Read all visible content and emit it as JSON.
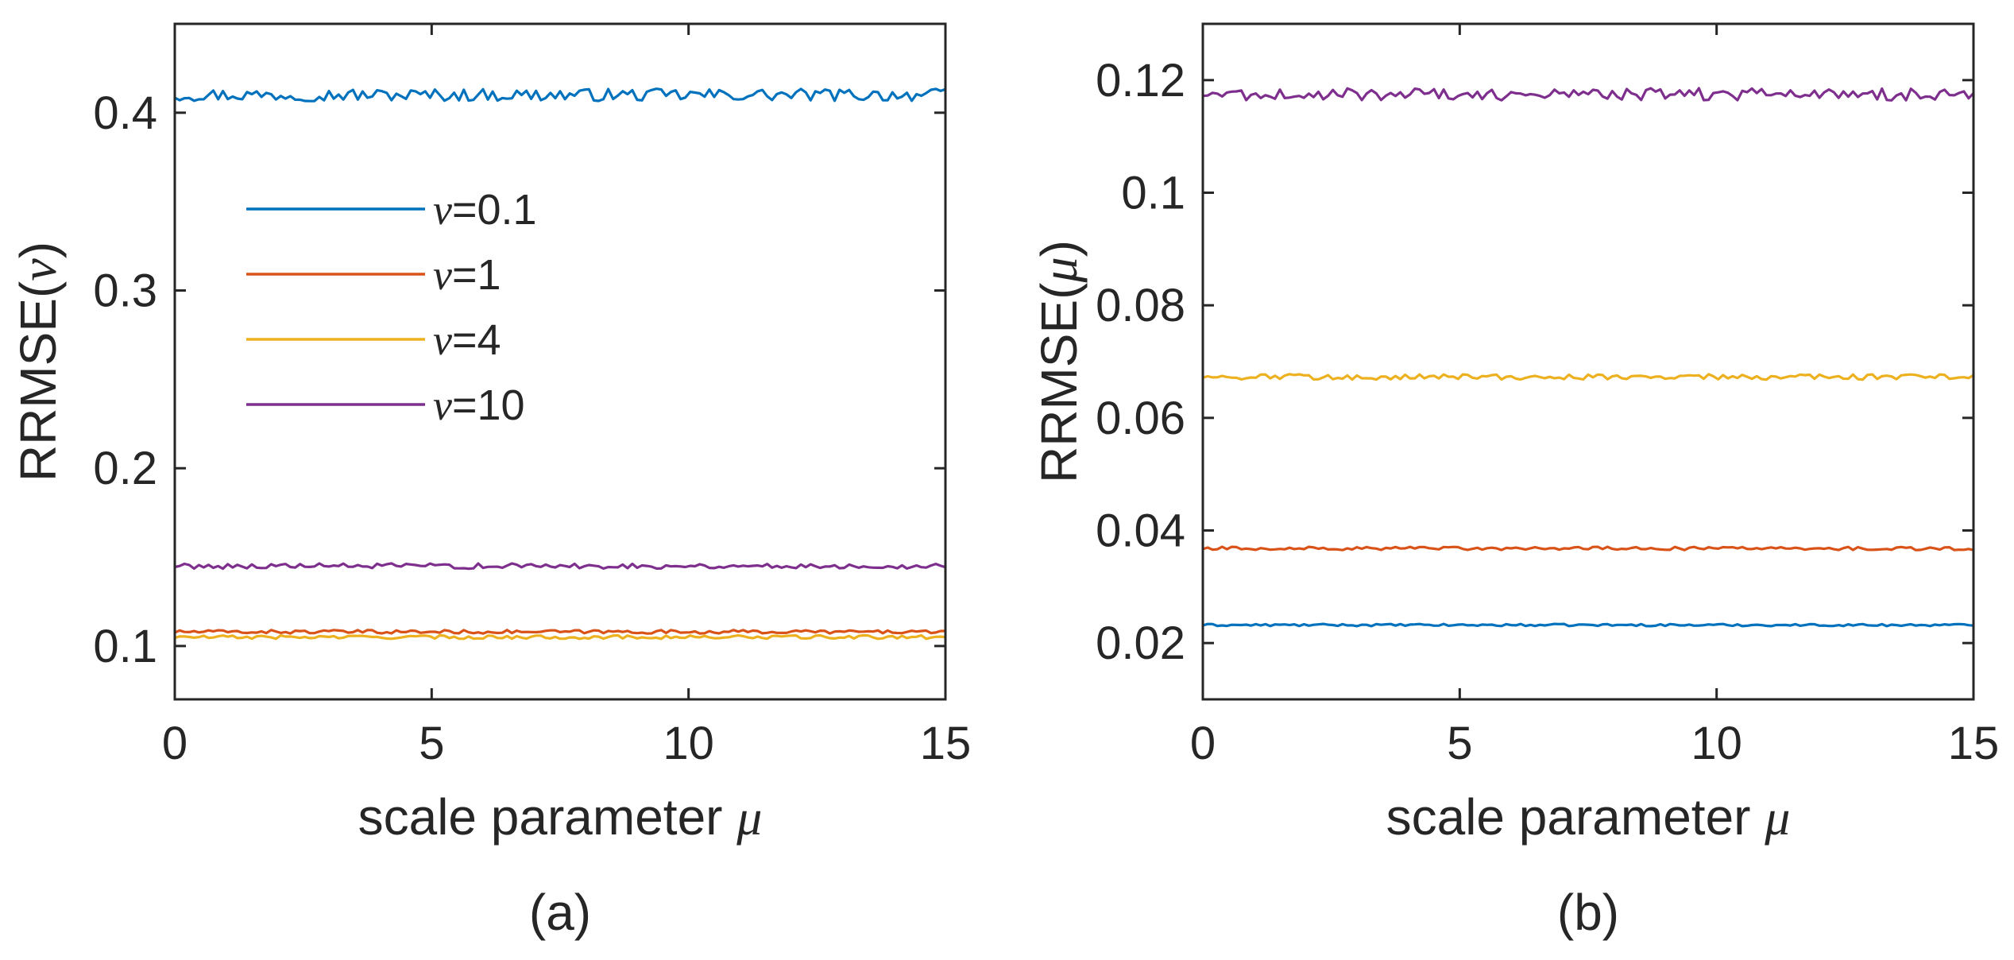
{
  "chart_data": [
    {
      "type": "line",
      "panel_label": "(a)",
      "xlabel": "scale parameter",
      "xlabel_symbol": "μ",
      "ylabel": "RRMSE(",
      "ylabel_symbol": "ν",
      "ylabel_close": ")",
      "xlim": [
        0,
        15
      ],
      "ylim": [
        0.07,
        0.45
      ],
      "xticks": [
        0,
        5,
        10,
        15
      ],
      "xtick_labels": [
        "0",
        "5",
        "10",
        "15"
      ],
      "yticks": [
        0.1,
        0.2,
        0.3,
        0.4
      ],
      "ytick_labels": [
        "0.1",
        "0.2",
        "0.3",
        "0.4"
      ],
      "grid": false,
      "legend_position": "upper-left",
      "legend": [
        {
          "symbol": "ν",
          "text": "=0.1"
        },
        {
          "symbol": "ν",
          "text": "=1"
        },
        {
          "symbol": "ν",
          "text": "=4"
        },
        {
          "symbol": "ν",
          "text": "=10"
        }
      ],
      "series": [
        {
          "name": "ν=0.1",
          "color": "#0072BD",
          "mean": 0.41,
          "noise": 0.0035
        },
        {
          "name": "ν=1",
          "color": "#D95319",
          "mean": 0.108,
          "noise": 0.001
        },
        {
          "name": "ν=4",
          "color": "#EDB120",
          "mean": 0.105,
          "noise": 0.001
        },
        {
          "name": "ν=10",
          "color": "#7E2F8E",
          "mean": 0.145,
          "noise": 0.0015
        }
      ]
    },
    {
      "type": "line",
      "panel_label": "(b)",
      "xlabel": "scale parameter",
      "xlabel_symbol": "μ",
      "ylabel": "RRMSE(",
      "ylabel_symbol": "μ",
      "ylabel_close": ")",
      "xlim": [
        0,
        15
      ],
      "ylim": [
        0.01,
        0.13
      ],
      "xticks": [
        0,
        5,
        10,
        15
      ],
      "xtick_labels": [
        "0",
        "5",
        "10",
        "15"
      ],
      "yticks": [
        0.02,
        0.04,
        0.06,
        0.08,
        0.1,
        0.12
      ],
      "ytick_labels": [
        "0.02",
        "0.04",
        "0.06",
        "0.08",
        "0.1",
        "0.12"
      ],
      "grid": false,
      "series": [
        {
          "name": "ν=0.1",
          "color": "#0072BD",
          "mean": 0.0232,
          "noise": 0.0002
        },
        {
          "name": "ν=1",
          "color": "#D95319",
          "mean": 0.0368,
          "noise": 0.0003
        },
        {
          "name": "ν=4",
          "color": "#EDB120",
          "mean": 0.0673,
          "noise": 0.0005
        },
        {
          "name": "ν=10",
          "color": "#7E2F8E",
          "mean": 0.1175,
          "noise": 0.0011
        }
      ]
    }
  ]
}
